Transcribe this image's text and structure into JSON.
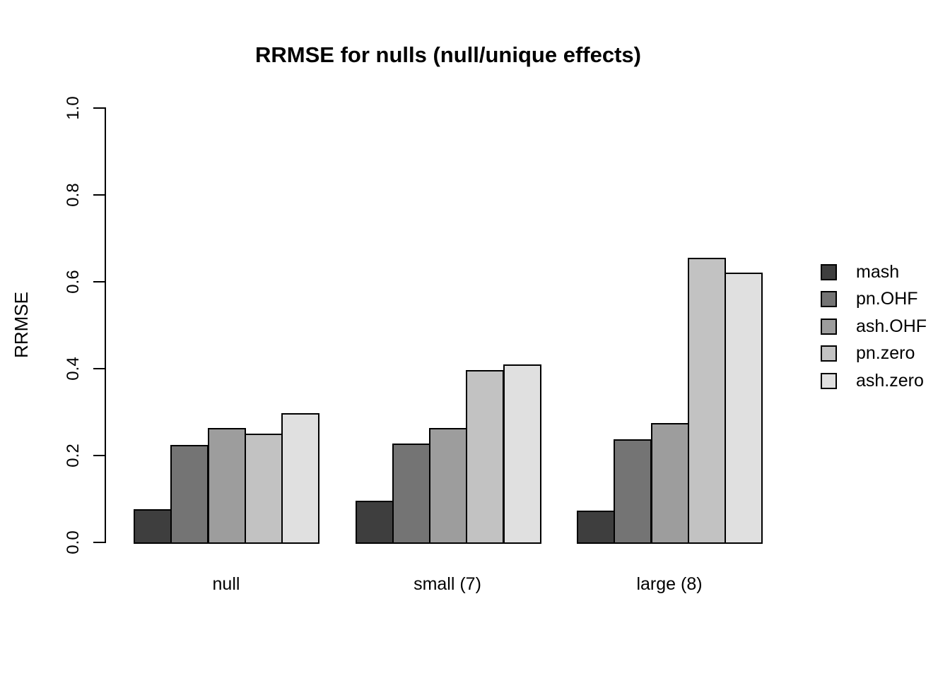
{
  "chart_data": {
    "type": "bar",
    "title": "RRMSE for nulls (null/unique effects)",
    "xlabel": "",
    "ylabel": "RRMSE",
    "ylim": [
      0.0,
      1.0
    ],
    "grid": false,
    "categories": [
      "null",
      "small (7)",
      "large (8)"
    ],
    "series": [
      {
        "name": "mash",
        "color": "#3e3e3e",
        "values": [
          0.076,
          0.096,
          0.073
        ]
      },
      {
        "name": "pn.OHF",
        "color": "#747474",
        "values": [
          0.224,
          0.227,
          0.238
        ]
      },
      {
        "name": "ash.OHF",
        "color": "#9d9d9d",
        "values": [
          0.263,
          0.263,
          0.275
        ]
      },
      {
        "name": "pn.zero",
        "color": "#c2c2c2",
        "values": [
          0.25,
          0.396,
          0.655
        ]
      },
      {
        "name": "ash.zero",
        "color": "#e0e0e0",
        "values": [
          0.298,
          0.41,
          0.621
        ]
      }
    ],
    "yticks": [
      0.0,
      0.2,
      0.4,
      0.6,
      0.8,
      1.0
    ],
    "ytick_labels": [
      "0.0",
      "0.2",
      "0.4",
      "0.6",
      "0.8",
      "1.0"
    ],
    "bar_border_color": "#000000",
    "legend": {
      "position": "right",
      "frame": false,
      "entries": [
        "mash",
        "pn.OHF",
        "ash.OHF",
        "pn.zero",
        "ash.zero"
      ]
    }
  }
}
